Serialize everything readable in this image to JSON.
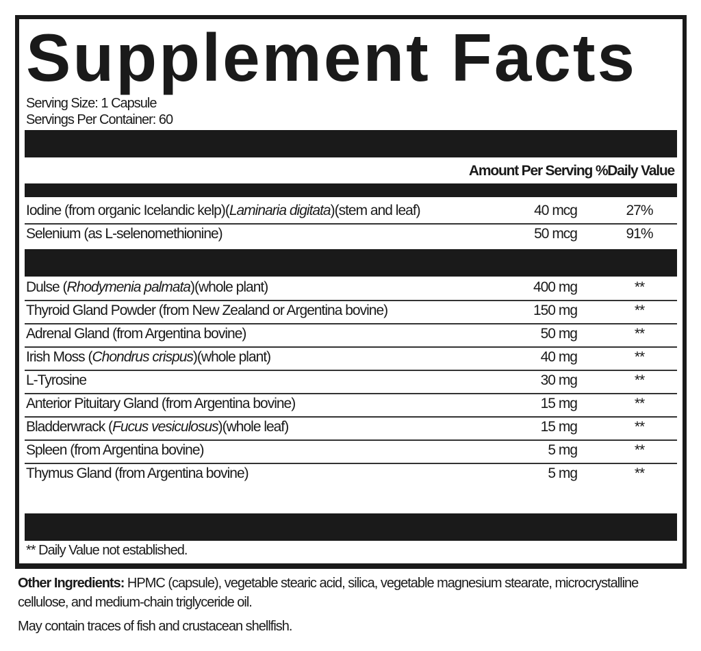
{
  "title": "Supplement Facts",
  "serving_size": "Serving Size: 1 Capsule",
  "servings_per_container": "Servings Per Container: 60",
  "header": {
    "amount": "Amount Per Serving",
    "dv": "%Daily Value"
  },
  "section1": [
    {
      "name_pre": "Iodine (from organic Icelandic kelp)(",
      "name_italic": "Laminaria digitata",
      "name_post": ")(stem and leaf)",
      "amount": "40 mcg",
      "dv": "27%"
    },
    {
      "name_pre": "Selenium (as L-selenomethionine)",
      "name_italic": "",
      "name_post": "",
      "amount": "50 mcg",
      "dv": "91%"
    }
  ],
  "section2": [
    {
      "name_pre": "Dulse (",
      "name_italic": "Rhodymenia palmata",
      "name_post": ")(whole plant)",
      "amount": "400 mg",
      "dv": "**"
    },
    {
      "name_pre": "Thyroid Gland Powder (from New Zealand or Argentina bovine)",
      "name_italic": "",
      "name_post": "",
      "amount": "150 mg",
      "dv": "**"
    },
    {
      "name_pre": "Adrenal Gland (from Argentina bovine)",
      "name_italic": "",
      "name_post": "",
      "amount": "50 mg",
      "dv": "**"
    },
    {
      "name_pre": "Irish Moss (",
      "name_italic": "Chondrus crispus",
      "name_post": ")(whole plant)",
      "amount": "40 mg",
      "dv": "**"
    },
    {
      "name_pre": "L-Tyrosine",
      "name_italic": "",
      "name_post": "",
      "amount": "30 mg",
      "dv": "**"
    },
    {
      "name_pre": "Anterior Pituitary Gland (from Argentina bovine)",
      "name_italic": "",
      "name_post": "",
      "amount": "15 mg",
      "dv": "**"
    },
    {
      "name_pre": "Bladderwrack (",
      "name_italic": "Fucus vesiculosus",
      "name_post": ")(whole leaf)",
      "amount": "15 mg",
      "dv": "**"
    },
    {
      "name_pre": "Spleen (from Argentina bovine)",
      "name_italic": "",
      "name_post": "",
      "amount": "5 mg",
      "dv": "**"
    },
    {
      "name_pre": "Thymus Gland (from Argentina bovine)",
      "name_italic": "",
      "name_post": "",
      "amount": "5 mg",
      "dv": "**"
    }
  ],
  "footnote": "** Daily Value not established.",
  "other_ingredients": {
    "label": "Other Ingredients:",
    "text": " HPMC (capsule), vegetable stearic acid, silica, vegetable magnesium stearate, microcrystalline cellulose, and medium-chain triglyceride oil."
  },
  "allergen": "May contain traces of fish and crustacean shellfish."
}
